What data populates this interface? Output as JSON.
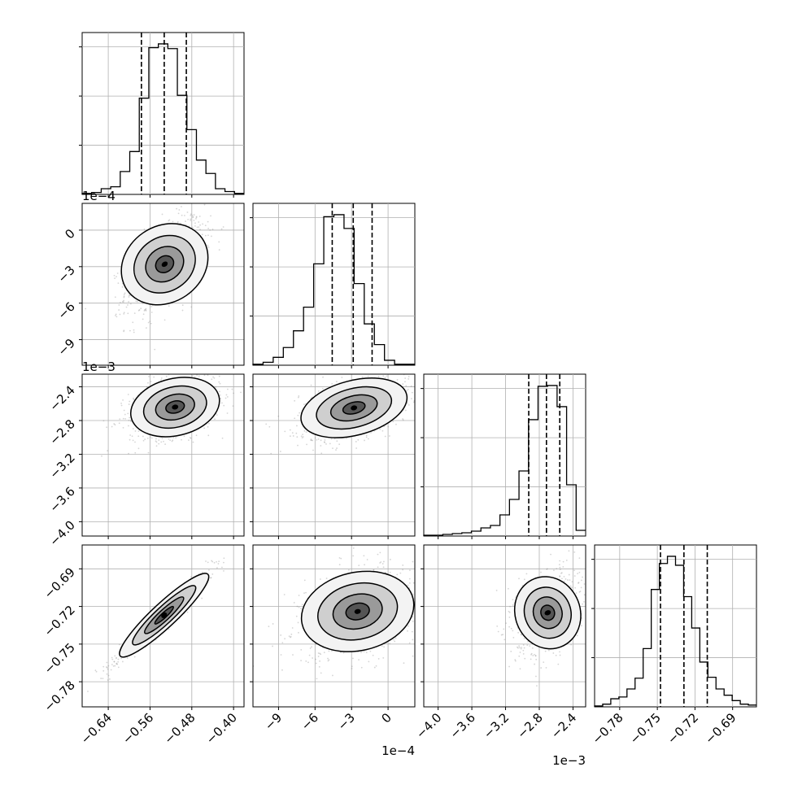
{
  "chart_data": {
    "type": "corner",
    "grid": true,
    "params": [
      {
        "range": [
          -0.69,
          -0.38
        ],
        "ticks": [
          -0.64,
          -0.56,
          -0.48,
          -0.4
        ],
        "tick_labels": [
          "−0.64",
          "−0.56",
          "−0.48",
          "−0.40"
        ],
        "offset_text": "",
        "quantiles": [
          -0.5765,
          -0.5328,
          -0.4905
        ],
        "hist_counts": [
          1,
          2,
          6,
          8,
          24,
          45,
          101,
          154,
          158,
          153,
          104,
          68,
          36,
          22,
          6,
          3,
          1
        ]
      },
      {
        "range": [
          -11.1,
          2.2
        ],
        "ticks": [
          -9,
          -6,
          -3,
          0
        ],
        "tick_labels": [
          "−9",
          "−6",
          "−3",
          "0"
        ],
        "offset_text": "1e−4",
        "quantiles": [
          -4.588,
          -2.861,
          -1.311
        ],
        "hist_counts": [
          1,
          3,
          8,
          18,
          35,
          59,
          103,
          151,
          153,
          139,
          83,
          42,
          21,
          5,
          1,
          1
        ]
      },
      {
        "range": [
          -4.17,
          -2.25
        ],
        "ticks": [
          -4.0,
          -3.6,
          -3.2,
          -2.8,
          -2.4
        ],
        "tick_labels": [
          "−4.0",
          "−3.6",
          "−3.2",
          "−2.8",
          "−2.4"
        ],
        "offset_text": "1e−3",
        "quantiles": [
          -2.925,
          -2.715,
          -2.557
        ],
        "hist_counts": [
          1,
          1,
          2,
          3,
          4,
          6,
          10,
          13,
          26,
          45,
          80,
          143,
          184,
          185,
          159,
          63,
          7
        ]
      },
      {
        "range": [
          -0.8,
          -0.671
        ],
        "ticks": [
          -0.78,
          -0.75,
          -0.72,
          -0.69
        ],
        "tick_labels": [
          "−0.78",
          "−0.75",
          "−0.72",
          "−0.69"
        ],
        "offset_text": "",
        "quantiles": [
          -0.7475,
          -0.7288,
          -0.7102
        ],
        "hist_counts": [
          1,
          3,
          9,
          11,
          20,
          32,
          65,
          131,
          160,
          168,
          158,
          123,
          88,
          50,
          33,
          20,
          13,
          7,
          3,
          2
        ]
      }
    ],
    "pairs": [
      {
        "row": 1,
        "col": 0,
        "peak": [
          -0.532,
          -2.8
        ],
        "sx": 0.03,
        "sy": 1.6,
        "rho": 0.55,
        "mode": "1-2"
      },
      {
        "row": 2,
        "col": 0,
        "peak": [
          -0.512,
          -2.64
        ],
        "sx": 0.035,
        "sy": 0.15,
        "rho": 0.35,
        "mode": "1-3"
      },
      {
        "row": 2,
        "col": 1,
        "peak": [
          -2.8,
          -2.65
        ],
        "sx": 1.8,
        "sy": 0.15,
        "rho": 0.45,
        "mode": "2-3"
      },
      {
        "row": 3,
        "col": 0,
        "peak": [
          -0.533,
          -0.727
        ],
        "sx": 0.035,
        "sy": 0.014,
        "rho": 0.97,
        "mode": "1-4"
      },
      {
        "row": 3,
        "col": 1,
        "peak": [
          -2.5,
          -0.724
        ],
        "sx": 1.9,
        "sy": 0.014,
        "rho": 0.3,
        "mode": "2-4"
      },
      {
        "row": 3,
        "col": 2,
        "peak": [
          -2.7,
          -0.725
        ],
        "sx": 0.15,
        "sy": 0.013,
        "rho": 0.3,
        "mode": "3-4"
      }
    ]
  },
  "page": {
    "offset_labels": [
      "1e−4",
      "1e−3",
      "1e−4",
      "1e−3"
    ]
  }
}
